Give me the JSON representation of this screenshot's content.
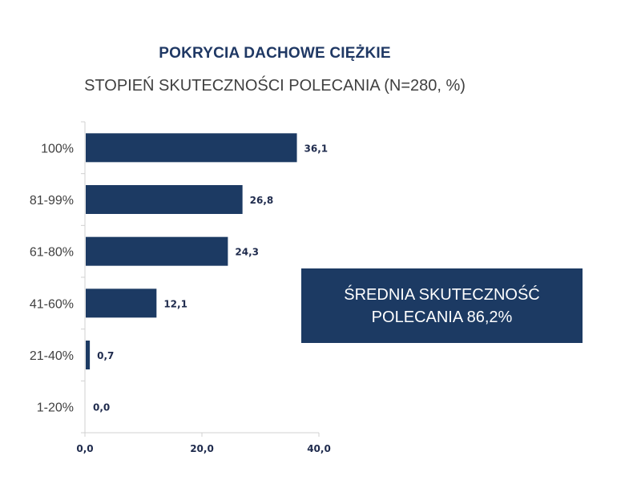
{
  "chart_data": {
    "type": "bar",
    "orientation": "horizontal",
    "title": "POKRYCIA DACHOWE CIĘŻKIE",
    "subtitle": "STOPIEŃ SKUTECZNOŚCI POLECANIA (N=280, %)",
    "categories": [
      "100%",
      "81-99%",
      "61-80%",
      "41-60%",
      "21-40%",
      "1-20%"
    ],
    "values": [
      36.1,
      26.8,
      24.3,
      12.1,
      0.7,
      0.0
    ],
    "value_labels": [
      "36,1",
      "26,8",
      "24,3",
      "12,1",
      "0,7",
      "0,0"
    ],
    "xlim": [
      0,
      40
    ],
    "x_ticks": [
      0,
      20,
      40
    ],
    "x_tick_labels": [
      "0,0",
      "20,0",
      "40,0"
    ],
    "grid": false,
    "bar_color": "#1c3a63"
  },
  "callout": {
    "line1": "ŚREDNIA SKUTECZNOŚĆ",
    "line2": "POLECANIA 86,2%"
  }
}
